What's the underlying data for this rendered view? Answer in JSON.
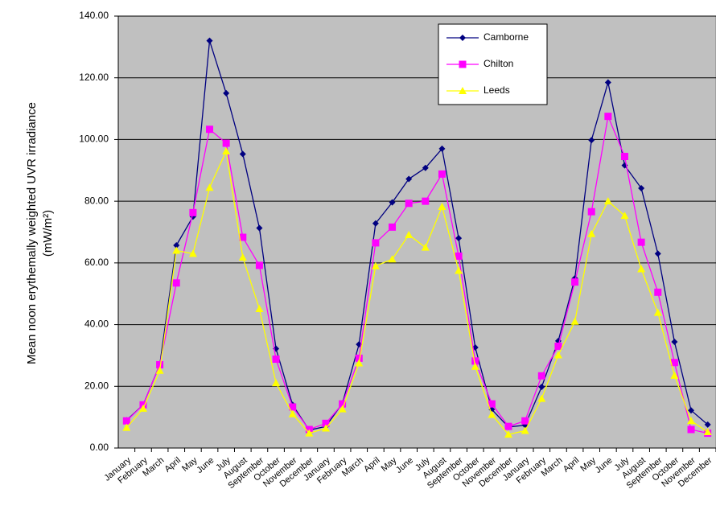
{
  "chart_data": {
    "type": "line",
    "y_label": [
      "Mean noon erythemally weighted UVR irradiance",
      "(mW/m²)"
    ],
    "categories": [
      "January",
      "February",
      "March",
      "April",
      "May",
      "June",
      "July",
      "August",
      "September",
      "October",
      "November",
      "December",
      "January",
      "February",
      "March",
      "April",
      "May",
      "June",
      "July",
      "August",
      "September",
      "October",
      "November",
      "December",
      "January",
      "February",
      "March",
      "April",
      "May",
      "June",
      "July",
      "August",
      "September",
      "October",
      "November",
      "December"
    ],
    "series": [
      {
        "name": "Camborne",
        "color": "#000080",
        "marker": "diamond",
        "values": [
          9,
          14,
          27,
          65.7,
          75,
          132,
          115,
          95.3,
          71.3,
          32.2,
          14,
          5.8,
          7,
          14.5,
          33.6,
          72.8,
          79.6,
          87.2,
          90.8,
          97,
          68,
          32.6,
          12.5,
          6.8,
          7.4,
          19.8,
          34.7,
          55,
          99.8,
          118.5,
          91.6,
          84.2,
          63,
          34.4,
          12.2,
          7.6
        ]
      },
      {
        "name": "Chilton",
        "color": "#FF00FF",
        "marker": "square",
        "values": [
          8.8,
          14,
          27,
          53.5,
          76.3,
          103.3,
          98.8,
          68.3,
          59.2,
          28.8,
          13.3,
          6,
          8,
          14.3,
          29.1,
          66.5,
          71.6,
          79.3,
          80,
          88.8,
          62.2,
          28.2,
          14.3,
          7,
          8.8,
          23.4,
          33,
          53.8,
          76.6,
          107.5,
          94.5,
          66.7,
          50.5,
          27.7,
          6,
          4.8
        ]
      },
      {
        "name": "Leeds",
        "color": "#FFFF00",
        "marker": "triangle",
        "values": [
          6.6,
          12.8,
          25.1,
          64,
          63,
          84.4,
          96.2,
          61.8,
          45.1,
          21.1,
          11,
          4.8,
          6.4,
          12.6,
          27.5,
          59,
          61.2,
          69.1,
          65,
          78.2,
          57.5,
          26.4,
          10.8,
          4.4,
          5.6,
          16,
          30.1,
          41,
          69.4,
          80,
          75.3,
          58,
          43.9,
          23.5,
          8.8,
          5.2
        ]
      }
    ],
    "ylim": [
      0,
      140
    ],
    "yticks": [
      {
        "value": 0,
        "label": "0.00"
      },
      {
        "value": 20,
        "label": "20.00"
      },
      {
        "value": 40,
        "label": "40.00"
      },
      {
        "value": 60,
        "label": "60.00"
      },
      {
        "value": 80,
        "label": "80.00"
      },
      {
        "value": 100,
        "label": "100.00"
      },
      {
        "value": 120,
        "label": "120.00"
      },
      {
        "value": 140,
        "label": "140.00"
      }
    ],
    "grid": true,
    "plot_background": "#C0C0C0",
    "legend": "upper right"
  }
}
